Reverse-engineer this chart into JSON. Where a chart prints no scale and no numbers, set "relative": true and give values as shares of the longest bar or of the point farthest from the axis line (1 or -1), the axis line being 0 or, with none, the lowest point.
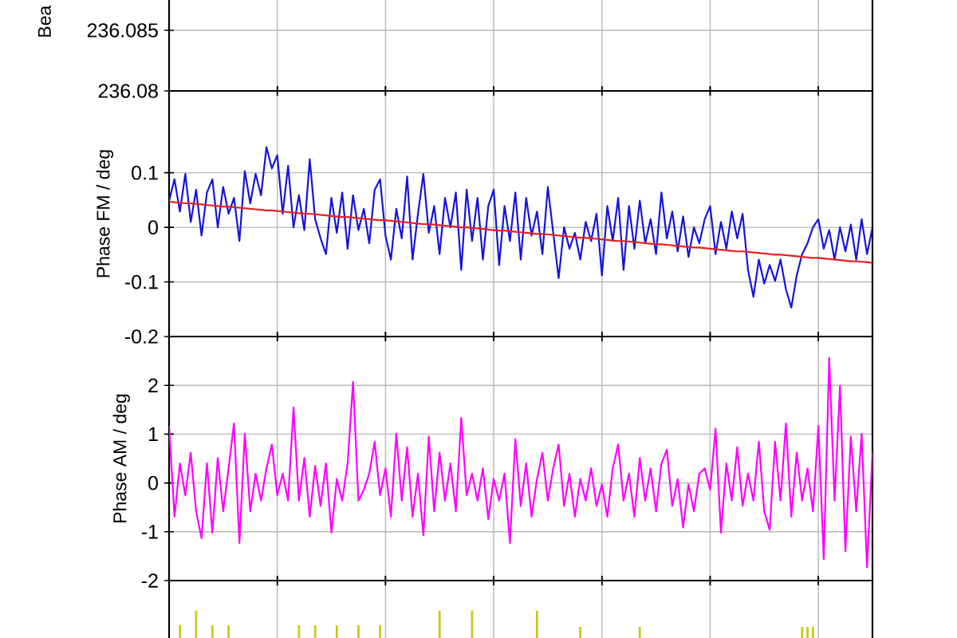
{
  "chart_data": [
    {
      "type": "line",
      "ylabel": "Bea",
      "categories": [
        null,
        null,
        null,
        null,
        null,
        null,
        null,
        null,
        null,
        null,
        null,
        null,
        null,
        null,
        null,
        null,
        null,
        null,
        null,
        null,
        null,
        null,
        null,
        null,
        null,
        null,
        null,
        null,
        null,
        null,
        null,
        null,
        null,
        null,
        null,
        null,
        null,
        null,
        null,
        null,
        null,
        null,
        null,
        null,
        null,
        null,
        null,
        null,
        null,
        null,
        null,
        null,
        null,
        null,
        null,
        null,
        null,
        null,
        null,
        null,
        null,
        null,
        null,
        null,
        null,
        null,
        null,
        null,
        null,
        null,
        null,
        null,
        null,
        null,
        null,
        null,
        null,
        null,
        null,
        null,
        null,
        null,
        null,
        null,
        null,
        null,
        null,
        null,
        null,
        null,
        null,
        null,
        null,
        null,
        null,
        null,
        null,
        null,
        null,
        null,
        null,
        null,
        null,
        null,
        null,
        null,
        null,
        null,
        null,
        null,
        null,
        null,
        null,
        null,
        null,
        null,
        null,
        null,
        null,
        null,
        null,
        null,
        null,
        null,
        null,
        null,
        null,
        null,
        null,
        null,
        null
      ],
      "ylim": [
        236.08,
        236.0875
      ],
      "yticks": [
        236.08,
        236.085
      ],
      "grid": true,
      "tick_labels": "y"
    },
    {
      "type": "line",
      "ylabel": "Phase FM / deg",
      "categories": [
        null,
        null,
        null,
        null,
        null,
        null,
        null,
        null,
        null,
        null,
        null,
        null,
        null,
        null,
        null,
        null,
        null,
        null,
        null,
        null,
        null,
        null,
        null,
        null,
        null,
        null,
        null,
        null,
        null,
        null,
        null,
        null,
        null,
        null,
        null,
        null,
        null,
        null,
        null,
        null,
        null,
        null,
        null,
        null,
        null,
        null,
        null,
        null,
        null,
        null,
        null,
        null,
        null,
        null,
        null,
        null,
        null,
        null,
        null,
        null,
        null,
        null,
        null,
        null,
        null,
        null,
        null,
        null,
        null,
        null,
        null,
        null,
        null,
        null,
        null,
        null,
        null,
        null,
        null,
        null,
        null,
        null,
        null,
        null,
        null,
        null,
        null,
        null,
        null,
        null,
        null,
        null,
        null,
        null,
        null,
        null,
        null,
        null,
        null,
        null,
        null,
        null,
        null,
        null,
        null,
        null,
        null,
        null,
        null,
        null,
        null,
        null,
        null,
        null,
        null,
        null,
        null,
        null,
        null,
        null,
        null,
        null,
        null,
        null,
        null,
        null,
        null,
        null,
        null,
        null,
        null
      ],
      "ylim": [
        -0.2,
        0.25
      ],
      "yticks": [
        -0.2,
        -0.1,
        0,
        0.1
      ],
      "grid": true,
      "tick_labels": "y",
      "series": [
        {
          "color": "#1414dc",
          "values": [
            0.049,
            0.088,
            0.029,
            0.098,
            0.01,
            0.069,
            -0.015,
            0.064,
            0.088,
            0,
            0.074,
            0.025,
            0.054,
            -0.025,
            0.103,
            0.044,
            0.098,
            0.059,
            0.147,
            0.108,
            0.132,
            0.025,
            0.113,
            0,
            0.059,
            -0.005,
            0.125,
            0.015,
            -0.02,
            -0.049,
            0.054,
            -0.01,
            0.064,
            -0.039,
            0.059,
            -0.005,
            0.034,
            -0.029,
            0.069,
            0.088,
            -0.015,
            -0.059,
            0.034,
            -0.02,
            0.093,
            -0.059,
            0.025,
            0.098,
            -0.01,
            0.039,
            -0.049,
            0.054,
            0,
            0.064,
            -0.078,
            0.069,
            -0.025,
            0.054,
            -0.059,
            0.039,
            0.069,
            -0.069,
            0.039,
            -0.025,
            0.064,
            -0.059,
            0.054,
            -0.015,
            0.029,
            -0.049,
            0.074,
            -0.01,
            -0.093,
            0,
            -0.039,
            -0.01,
            -0.059,
            0.01,
            -0.025,
            0.025,
            -0.088,
            0.039,
            -0.025,
            0.054,
            -0.078,
            0.039,
            -0.039,
            0.049,
            -0.029,
            0.015,
            -0.049,
            0.064,
            -0.02,
            0.029,
            -0.044,
            0.02,
            -0.054,
            0,
            -0.029,
            0.015,
            0.039,
            -0.049,
            0.01,
            -0.039,
            0.029,
            -0.02,
            0.025,
            -0.078,
            -0.127,
            -0.059,
            -0.103,
            -0.069,
            -0.098,
            -0.059,
            -0.113,
            -0.147,
            -0.088,
            -0.049,
            -0.029,
            0,
            0.015,
            -0.039,
            -0.005,
            -0.059,
            0,
            -0.044,
            0.005,
            -0.059,
            0.015,
            -0.049,
            0
          ]
        },
        {
          "color": "#e82020",
          "values": [
            0.047,
            0.046,
            0.045,
            0.044,
            0.044,
            0.043,
            0.042,
            0.041,
            0.04,
            0.039,
            0.038,
            0.038,
            0.037,
            0.036,
            0.035,
            0.034,
            0.033,
            0.032,
            0.031,
            0.031,
            0.03,
            0.029,
            0.028,
            0.027,
            0.026,
            0.025,
            0.025,
            0.024,
            0.023,
            0.022,
            0.021,
            0.02,
            0.019,
            0.019,
            0.018,
            0.017,
            0.016,
            0.015,
            0.014,
            0.013,
            0.013,
            0.012,
            0.011,
            0.01,
            0.009,
            0.008,
            0.007,
            0.006,
            0.006,
            0.005,
            0.004,
            0.003,
            0.002,
            0.001,
            0,
            0,
            -0.001,
            -0.002,
            -0.003,
            -0.004,
            -0.005,
            -0.006,
            -0.006,
            -0.007,
            -0.008,
            -0.009,
            -0.01,
            -0.011,
            -0.012,
            -0.012,
            -0.013,
            -0.014,
            -0.015,
            -0.016,
            -0.017,
            -0.018,
            -0.019,
            -0.019,
            -0.02,
            -0.021,
            -0.022,
            -0.023,
            -0.024,
            -0.025,
            -0.025,
            -0.026,
            -0.027,
            -0.028,
            -0.029,
            -0.03,
            -0.031,
            -0.031,
            -0.032,
            -0.033,
            -0.034,
            -0.035,
            -0.036,
            -0.037,
            -0.037,
            -0.038,
            -0.039,
            -0.04,
            -0.041,
            -0.042,
            -0.043,
            -0.044,
            -0.044,
            -0.045,
            -0.046,
            -0.047,
            -0.048,
            -0.049,
            -0.05,
            -0.05,
            -0.051,
            -0.052,
            -0.053,
            -0.054,
            -0.055,
            -0.056,
            -0.056,
            -0.057,
            -0.058,
            -0.059,
            -0.06,
            -0.061,
            -0.062,
            -0.062,
            -0.063,
            -0.064,
            -0.065
          ]
        }
      ]
    },
    {
      "type": "line",
      "ylabel": "Phase AM / deg",
      "categories": [
        null,
        null,
        null,
        null,
        null,
        null,
        null,
        null,
        null,
        null,
        null,
        null,
        null,
        null,
        null,
        null,
        null,
        null,
        null,
        null,
        null,
        null,
        null,
        null,
        null,
        null,
        null,
        null,
        null,
        null,
        null,
        null,
        null,
        null,
        null,
        null,
        null,
        null,
        null,
        null,
        null,
        null,
        null,
        null,
        null,
        null,
        null,
        null,
        null,
        null,
        null,
        null,
        null,
        null,
        null,
        null,
        null,
        null,
        null,
        null,
        null,
        null,
        null,
        null,
        null,
        null,
        null,
        null,
        null,
        null,
        null,
        null,
        null,
        null,
        null,
        null,
        null,
        null,
        null,
        null,
        null,
        null,
        null,
        null,
        null,
        null,
        null,
        null,
        null,
        null,
        null,
        null,
        null,
        null,
        null,
        null,
        null,
        null,
        null,
        null,
        null,
        null,
        null,
        null,
        null,
        null,
        null,
        null,
        null,
        null,
        null,
        null,
        null,
        null,
        null,
        null,
        null,
        null,
        null,
        null,
        null,
        null,
        null,
        null,
        null,
        null,
        null,
        null,
        null,
        null,
        null
      ],
      "ylim": [
        -2,
        3
      ],
      "yticks": [
        -2,
        -1,
        0,
        1,
        2
      ],
      "grid": true,
      "tick_labels": "y",
      "series": [
        {
          "color": "#ff00ff",
          "values": [
            1.17,
            -0.69,
            0.4,
            -0.25,
            0.62,
            -0.58,
            -1.13,
            0.4,
            -1.02,
            0.51,
            -0.58,
            0.3,
            1.22,
            -1.23,
            1.01,
            -0.58,
            0.19,
            -0.36,
            0.3,
            0.79,
            -0.25,
            0.19,
            -0.36,
            1.55,
            -0.36,
            0.51,
            -0.69,
            0.35,
            -0.47,
            0.4,
            -1.02,
            0.08,
            -0.36,
            0.4,
            2.07,
            -0.36,
            -0.14,
            0.19,
            0.84,
            -0.25,
            0.3,
            -0.69,
            1.01,
            -0.36,
            0.73,
            -0.69,
            0.19,
            -1.07,
            0.95,
            -0.58,
            0.62,
            -0.36,
            0.4,
            -0.58,
            1.33,
            -0.25,
            0.19,
            -0.36,
            0.3,
            -0.74,
            0.08,
            -0.36,
            0.19,
            -1.23,
            0.9,
            -0.47,
            0.4,
            -0.69,
            0.08,
            0.62,
            -0.36,
            0.3,
            0.79,
            -0.47,
            0.19,
            -0.69,
            0.08,
            -0.36,
            0.3,
            -0.47,
            -0.03,
            -0.69,
            0.3,
            0.79,
            -0.36,
            0.19,
            -0.69,
            0.51,
            -0.36,
            0.3,
            -0.58,
            0.4,
            0.68,
            -0.47,
            0.08,
            -0.91,
            -0.03,
            -0.58,
            0.19,
            0.3,
            -0.14,
            1.11,
            -1.02,
            0.4,
            -0.36,
            0.73,
            -0.47,
            0.19,
            -0.36,
            0.84,
            -0.58,
            -0.96,
            0.84,
            -0.36,
            1.22,
            -0.69,
            0.62,
            -0.36,
            0.3,
            -0.58,
            1.17,
            -1.56,
            2.56,
            -0.36,
            1.99,
            -1.4,
            0.95,
            -0.58,
            1.01,
            -1.73,
            0.62
          ]
        }
      ]
    },
    {
      "type": "bar",
      "relative": true,
      "color": "#c8c81e",
      "grid": "x",
      "tick_labels": false,
      "categories": [
        null,
        null,
        null,
        null,
        null,
        null,
        null,
        null,
        null,
        null,
        null,
        null,
        null,
        null,
        null,
        null,
        null,
        null,
        null,
        null,
        null,
        null,
        null,
        null,
        null,
        null,
        null,
        null,
        null,
        null,
        null,
        null,
        null,
        null,
        null,
        null,
        null,
        null,
        null,
        null,
        null,
        null,
        null,
        null,
        null,
        null,
        null,
        null,
        null,
        null,
        null,
        null,
        null,
        null,
        null,
        null,
        null,
        null,
        null,
        null,
        null,
        null,
        null,
        null,
        null,
        null,
        null,
        null,
        null,
        null,
        null,
        null,
        null,
        null,
        null,
        null,
        null,
        null,
        null,
        null,
        null,
        null,
        null,
        null,
        null,
        null,
        null,
        null,
        null,
        null,
        null,
        null,
        null,
        null,
        null,
        null,
        null,
        null,
        null,
        null,
        null,
        null,
        null,
        null,
        null,
        null,
        null,
        null,
        null,
        null,
        null,
        null,
        null,
        null,
        null,
        null,
        null,
        null,
        null,
        null,
        null,
        null,
        null,
        null,
        null,
        null,
        null,
        null,
        null,
        null,
        null
      ],
      "values": [
        null,
        null,
        0.47,
        null,
        null,
        1,
        null,
        null,
        0.47,
        null,
        null,
        0.47,
        null,
        null,
        null,
        null,
        null,
        null,
        null,
        null,
        null,
        null,
        null,
        null,
        0.47,
        null,
        null,
        0.47,
        null,
        null,
        null,
        0.47,
        null,
        null,
        null,
        0.47,
        null,
        null,
        null,
        0.47,
        null,
        null,
        null,
        null,
        null,
        null,
        null,
        null,
        null,
        null,
        1,
        null,
        null,
        null,
        null,
        null,
        1,
        null,
        null,
        null,
        null,
        null,
        null,
        null,
        null,
        null,
        null,
        null,
        1,
        null,
        null,
        null,
        null,
        null,
        null,
        null,
        0.41,
        null,
        null,
        null,
        null,
        null,
        null,
        null,
        null,
        null,
        null,
        0.41,
        null,
        null,
        null,
        null,
        null,
        null,
        null,
        null,
        null,
        null,
        null,
        null,
        null,
        null,
        null,
        null,
        null,
        null,
        null,
        null,
        null,
        null,
        null,
        null,
        null,
        null,
        null,
        null,
        null,
        0.41,
        0.41,
        0.41,
        null,
        null,
        null,
        null,
        null,
        null,
        null,
        null,
        null,
        null,
        null
      ]
    }
  ]
}
